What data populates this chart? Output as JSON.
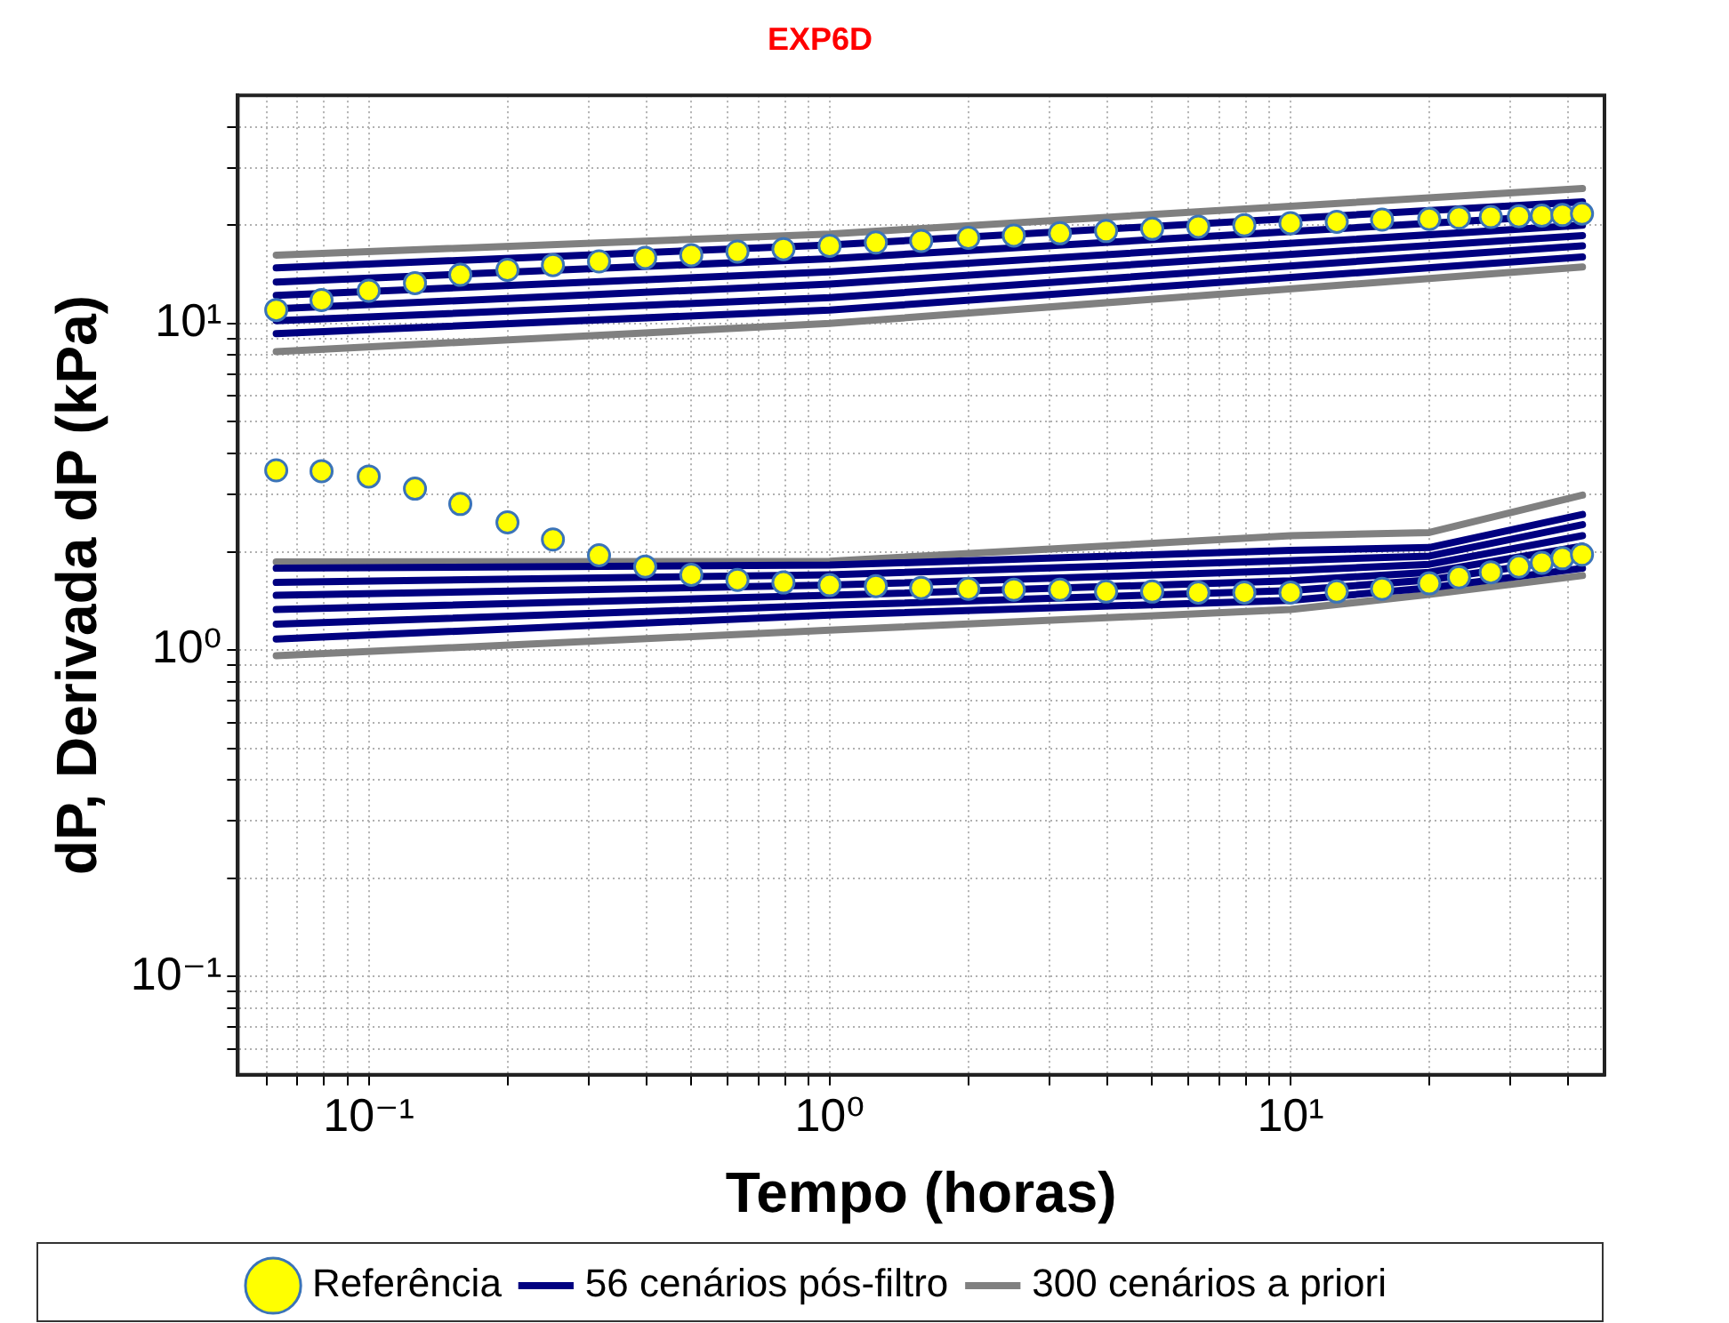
{
  "chart_data": {
    "type": "line",
    "title": "EXP6D",
    "xlabel": "Tempo (horas)",
    "ylabel": "dP, Derivada dP (kPa)",
    "log": "xy",
    "grid": true,
    "legend": "bottom",
    "xlim": [
      0.052,
      48
    ],
    "ylim": [
      0.05,
      50
    ],
    "xticks": [
      {
        "value": 0.06,
        "label": null
      },
      {
        "value": 0.07,
        "label": null
      },
      {
        "value": 0.08,
        "label": null
      },
      {
        "value": 0.09,
        "label": null
      },
      {
        "value": 0.1,
        "label": "10⁻¹"
      },
      {
        "value": 0.2,
        "label": null
      },
      {
        "value": 0.3,
        "label": null
      },
      {
        "value": 0.4,
        "label": null
      },
      {
        "value": 0.5,
        "label": null
      },
      {
        "value": 0.6,
        "label": null
      },
      {
        "value": 0.7,
        "label": null
      },
      {
        "value": 0.8,
        "label": null
      },
      {
        "value": 0.9,
        "label": null
      },
      {
        "value": 1,
        "label": "10⁰"
      },
      {
        "value": 2,
        "label": null
      },
      {
        "value": 3,
        "label": null
      },
      {
        "value": 4,
        "label": null
      },
      {
        "value": 5,
        "label": null
      },
      {
        "value": 6,
        "label": null
      },
      {
        "value": 7,
        "label": null
      },
      {
        "value": 8,
        "label": null
      },
      {
        "value": 9,
        "label": null
      },
      {
        "value": 10,
        "label": "10¹"
      },
      {
        "value": 20,
        "label": null
      },
      {
        "value": 30,
        "label": null
      },
      {
        "value": 40,
        "label": null
      }
    ],
    "yticks": [
      {
        "value": 0.06,
        "label": null
      },
      {
        "value": 0.07,
        "label": null
      },
      {
        "value": 0.08,
        "label": null
      },
      {
        "value": 0.09,
        "label": null
      },
      {
        "value": 0.1,
        "label": "10⁻¹"
      },
      {
        "value": 0.2,
        "label": null
      },
      {
        "value": 0.3,
        "label": null
      },
      {
        "value": 0.4,
        "label": null
      },
      {
        "value": 0.5,
        "label": null
      },
      {
        "value": 0.6,
        "label": null
      },
      {
        "value": 0.7,
        "label": null
      },
      {
        "value": 0.8,
        "label": null
      },
      {
        "value": 0.9,
        "label": null
      },
      {
        "value": 1,
        "label": "10⁰"
      },
      {
        "value": 2,
        "label": null
      },
      {
        "value": 3,
        "label": null
      },
      {
        "value": 4,
        "label": null
      },
      {
        "value": 5,
        "label": null
      },
      {
        "value": 6,
        "label": null
      },
      {
        "value": 7,
        "label": null
      },
      {
        "value": 8,
        "label": null
      },
      {
        "value": 9,
        "label": null
      },
      {
        "value": 10,
        "label": "10¹"
      },
      {
        "value": 20,
        "label": null
      },
      {
        "value": 30,
        "label": null
      },
      {
        "value": 40,
        "label": null
      }
    ],
    "series": [
      {
        "name": "Referência",
        "type": "scatter",
        "marker": "circle",
        "color": "#ffff00",
        "x": [
          0.063,
          0.079,
          0.1,
          0.126,
          0.158,
          0.2,
          0.251,
          0.316,
          0.398,
          0.501,
          0.631,
          0.794,
          1,
          1.26,
          1.58,
          2,
          2.51,
          3.16,
          3.98,
          5.01,
          6.31,
          7.94,
          10,
          12.6,
          15.8,
          20,
          23.2,
          27.2,
          31.3,
          35.1,
          38.9,
          42.9,
          0.063,
          0.079,
          0.1,
          0.126,
          0.158,
          0.2,
          0.251,
          0.316,
          0.398,
          0.501,
          0.631,
          0.794,
          1,
          1.26,
          1.58,
          2,
          2.51,
          3.16,
          3.98,
          5.01,
          6.31,
          7.94,
          10,
          12.6,
          15.8,
          20,
          23.2,
          27.2,
          31.3,
          35.1,
          38.9,
          42.9
        ],
        "values": [
          11.0,
          11.8,
          12.6,
          13.3,
          14.1,
          14.6,
          15.1,
          15.5,
          15.9,
          16.2,
          16.6,
          16.9,
          17.3,
          17.7,
          17.9,
          18.3,
          18.6,
          18.9,
          19.2,
          19.5,
          19.8,
          20.0,
          20.3,
          20.5,
          20.8,
          20.9,
          21.1,
          21.2,
          21.3,
          21.4,
          21.5,
          21.7,
          3.55,
          3.53,
          3.4,
          3.12,
          2.8,
          2.46,
          2.18,
          1.95,
          1.8,
          1.7,
          1.64,
          1.61,
          1.58,
          1.57,
          1.55,
          1.54,
          1.53,
          1.53,
          1.51,
          1.51,
          1.5,
          1.5,
          1.5,
          1.51,
          1.54,
          1.6,
          1.67,
          1.73,
          1.8,
          1.85,
          1.91,
          1.96
        ]
      },
      {
        "name": "56 cenários pós-filtro",
        "type": "line",
        "color": "#000080",
        "x": [
          0.063,
          1,
          43
        ],
        "values": [
          9.31,
          11.0,
          16.0
        ]
      },
      {
        "type": "line",
        "color": "#000080",
        "x": [
          0.063,
          1,
          43
        ],
        "values": [
          10.2,
          12.0,
          17.3
        ]
      },
      {
        "type": "line",
        "color": "#000080",
        "x": [
          0.063,
          1,
          43
        ],
        "values": [
          11.1,
          13.2,
          18.6
        ]
      },
      {
        "type": "line",
        "color": "#000080",
        "x": [
          0.063,
          1,
          43
        ],
        "values": [
          12.2,
          14.4,
          20.0
        ]
      },
      {
        "type": "line",
        "color": "#000080",
        "x": [
          0.063,
          1,
          43
        ],
        "values": [
          13.4,
          15.8,
          21.6
        ]
      },
      {
        "type": "line",
        "color": "#000080",
        "x": [
          0.063,
          1,
          43
        ],
        "values": [
          14.8,
          17.4,
          23.6
        ]
      },
      {
        "type": "line",
        "color": "#000080",
        "x": [
          0.063,
          1,
          10,
          20,
          43
        ],
        "values": [
          1.08,
          1.28,
          1.42,
          1.55,
          1.78
        ]
      },
      {
        "type": "line",
        "color": "#000080",
        "x": [
          0.063,
          1,
          10,
          20,
          43
        ],
        "values": [
          1.2,
          1.37,
          1.52,
          1.64,
          1.92
        ]
      },
      {
        "type": "line",
        "color": "#000080",
        "x": [
          0.063,
          1,
          10,
          20,
          43
        ],
        "values": [
          1.33,
          1.47,
          1.63,
          1.73,
          2.08
        ]
      },
      {
        "type": "line",
        "color": "#000080",
        "x": [
          0.063,
          1,
          10,
          20,
          43
        ],
        "values": [
          1.47,
          1.58,
          1.75,
          1.83,
          2.24
        ]
      },
      {
        "type": "line",
        "color": "#000080",
        "x": [
          0.063,
          1,
          10,
          20,
          43
        ],
        "values": [
          1.61,
          1.7,
          1.88,
          1.94,
          2.42
        ]
      },
      {
        "type": "line",
        "color": "#000080",
        "x": [
          0.063,
          1,
          10,
          20,
          43
        ],
        "values": [
          1.78,
          1.82,
          2.02,
          2.06,
          2.6
        ]
      },
      {
        "name": "300 cenários a priori",
        "type": "line",
        "color": "#808080",
        "x": [
          0.063,
          1,
          43
        ],
        "values": [
          16.2,
          18.8,
          25.9
        ]
      },
      {
        "type": "line",
        "color": "#808080",
        "x": [
          0.063,
          1,
          43
        ],
        "values": [
          8.2,
          10.0,
          14.9
        ]
      },
      {
        "type": "line",
        "color": "#808080",
        "x": [
          0.063,
          1,
          10,
          20,
          43
        ],
        "values": [
          1.86,
          1.87,
          2.24,
          2.29,
          2.98
        ]
      },
      {
        "type": "line",
        "color": "#808080",
        "x": [
          0.063,
          1,
          10,
          20,
          43
        ],
        "values": [
          0.96,
          1.15,
          1.33,
          1.48,
          1.69
        ]
      }
    ]
  }
}
